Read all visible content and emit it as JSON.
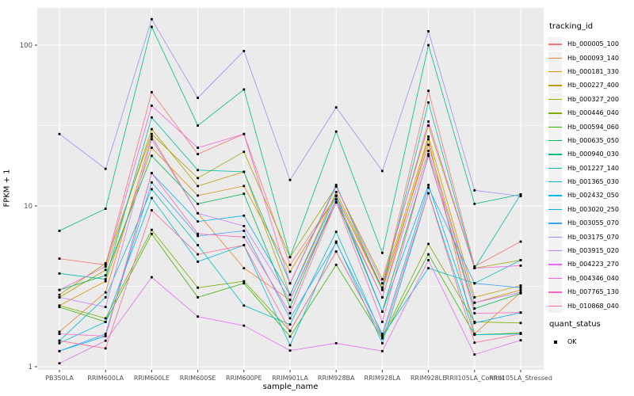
{
  "figure": {
    "y_axis": {
      "label": "FPKM + 1"
    },
    "x_axis": {
      "label": "sample_name"
    },
    "legend": {
      "tracking_title": "tracking_id",
      "quant_title": "quant_status",
      "quant_value": "OK"
    },
    "colors": {
      "panel_bg": "#EBEBEB",
      "grid": "#FFFFFF",
      "point": "#000000",
      "tick_text": "#4D4D4D",
      "legend_key_bg": "#F2F2F2"
    }
  },
  "chart_data": {
    "type": "line",
    "title": "",
    "xlabel": "sample_name",
    "ylabel": "FPKM + 1",
    "y_scale": "log10",
    "ylim": [
      1,
      170
    ],
    "y_ticks": [
      1,
      10,
      100
    ],
    "y_minor_ticks": [
      3.162,
      31.62
    ],
    "grid": true,
    "legend_position": "right",
    "point_shape": "filled-black-square",
    "quant_status": "OK",
    "categories": [
      "PB350LA",
      "RRIM600LA",
      "RRIM600LE",
      "RRIM600SE",
      "RRIM600PE",
      "RRIM901LA",
      "RRIM928BA",
      "RRIM928LA",
      "RRIM928LE",
      "RRII105LA_Control",
      "RRII105LA_Stressed"
    ],
    "series": [
      {
        "name": "Hb_000005_100",
        "color": "#F8766D",
        "values": [
          4.7,
          4.3,
          51,
          21,
          28,
          4.3,
          11.5,
          3.1,
          52,
          4.2,
          6.0
        ]
      },
      {
        "name": "Hb_000093_140",
        "color": "#EA8331",
        "values": [
          1.65,
          2.9,
          27,
          9.0,
          4.1,
          2.6,
          10.5,
          2.7,
          26,
          1.6,
          2.9
        ]
      },
      {
        "name": "Hb_000181_330",
        "color": "#D89000",
        "values": [
          2.4,
          3.4,
          23,
          11.6,
          13.3,
          3.9,
          11.6,
          3.0,
          24,
          2.5,
          3.0
        ]
      },
      {
        "name": "Hb_000227_400",
        "color": "#C09B00",
        "values": [
          2.7,
          4.0,
          30,
          13.3,
          16.3,
          2.8,
          12.2,
          3.1,
          27,
          2.7,
          3.2
        ]
      },
      {
        "name": "Hb_000327_200",
        "color": "#A3A500",
        "values": [
          2.8,
          4.4,
          28,
          14.9,
          21.7,
          4.8,
          13.2,
          3.5,
          31.6,
          4.1,
          4.6
        ]
      },
      {
        "name": "Hb_000446_040",
        "color": "#7CAE00",
        "values": [
          2.4,
          2.0,
          7.1,
          3.1,
          3.4,
          1.67,
          5.2,
          1.53,
          5.8,
          1.9,
          1.87
        ]
      },
      {
        "name": "Hb_000594_060",
        "color": "#39B600",
        "values": [
          2.35,
          1.9,
          6.7,
          2.7,
          3.3,
          1.54,
          4.3,
          1.5,
          5.0,
          1.58,
          1.62
        ]
      },
      {
        "name": "Hb_000635_050",
        "color": "#00BB4E",
        "values": [
          3.0,
          3.7,
          20.5,
          10.3,
          11.9,
          2.35,
          11.0,
          2.2,
          20.5,
          2.3,
          2.86
        ]
      },
      {
        "name": "Hb_000940_030",
        "color": "#00BF7D",
        "values": [
          7.0,
          9.6,
          130,
          31.6,
          53,
          4.8,
          29,
          5.1,
          100,
          10.3,
          11.8
        ]
      },
      {
        "name": "Hb_001227_140",
        "color": "#00C1A7",
        "values": [
          3.8,
          3.5,
          35.5,
          16.7,
          16.3,
          3.3,
          13.5,
          3.0,
          44,
          4.1,
          11.8
        ]
      },
      {
        "name": "Hb_001365_030",
        "color": "#00BFC4",
        "values": [
          1.45,
          2.7,
          12.7,
          5.7,
          2.4,
          1.83,
          6.9,
          1.55,
          4.1,
          3.3,
          4.6
        ]
      },
      {
        "name": "Hb_002432_050",
        "color": "#00BAE0",
        "values": [
          1.4,
          1.9,
          11.2,
          4.5,
          5.7,
          1.36,
          6.0,
          1.4,
          12.0,
          1.58,
          1.6
        ]
      },
      {
        "name": "Hb_003020_250",
        "color": "#00B0F6",
        "values": [
          1.25,
          1.55,
          16,
          8.0,
          8.7,
          2.8,
          11.6,
          2.2,
          13.5,
          1.87,
          2.17
        ]
      },
      {
        "name": "Hb_003055_070",
        "color": "#35A2FF",
        "values": [
          1.25,
          1.6,
          14.0,
          6.5,
          7.0,
          2.0,
          5.9,
          1.6,
          13.0,
          3.3,
          3.1
        ]
      },
      {
        "name": "Hb_003175_070",
        "color": "#9590FF",
        "values": [
          28,
          17,
          145,
          47,
          92,
          14.5,
          41,
          16.5,
          122,
          12.5,
          11.5
        ]
      },
      {
        "name": "Hb_003915_020",
        "color": "#C77CFF",
        "values": [
          2.7,
          2.35,
          26,
          9.0,
          7.5,
          2.6,
          11.0,
          2.7,
          22,
          2.5,
          2.9
        ]
      },
      {
        "name": "Hb_004223_270",
        "color": "#E76BF3",
        "values": [
          1.05,
          1.45,
          3.6,
          2.05,
          1.8,
          1.26,
          1.4,
          1.25,
          4.6,
          1.19,
          1.46
        ]
      },
      {
        "name": "Hb_004346_040",
        "color": "#FA62DB",
        "values": [
          3.0,
          4.2,
          42,
          23,
          28,
          3.3,
          13.2,
          3.3,
          33.5,
          4.1,
          4.25
        ]
      },
      {
        "name": "Hb_007765_130",
        "color": "#FF62BC",
        "values": [
          1.6,
          1.55,
          16,
          6.7,
          6.4,
          2.15,
          10.6,
          1.9,
          21,
          2.15,
          2.17
        ]
      },
      {
        "name": "Hb_010868_040",
        "color": "#FF6A98",
        "values": [
          1.45,
          1.3,
          9.4,
          5.0,
          5.7,
          1.67,
          5.2,
          1.53,
          12.0,
          1.41,
          1.6
        ]
      }
    ]
  }
}
